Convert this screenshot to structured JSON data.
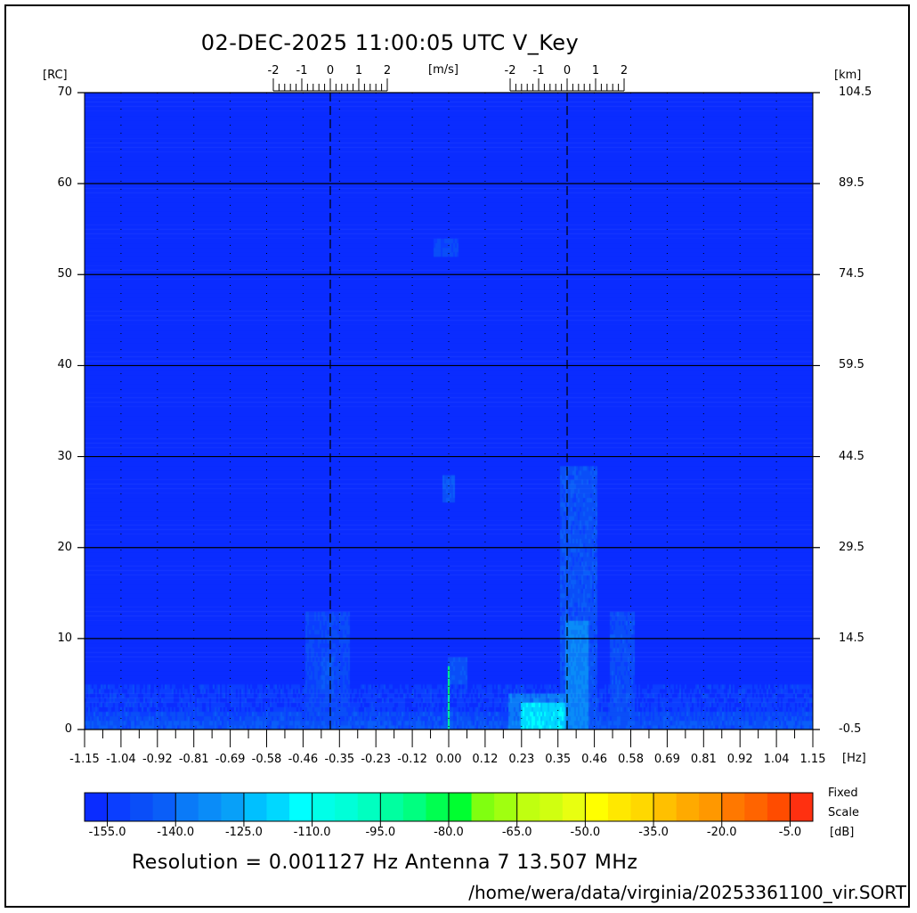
{
  "chart_data": {
    "type": "heatmap",
    "title": "02-DEC-2025 11:00:05 UTC   V_Key",
    "xlabel": "[Hz]",
    "ylabel_left": "[RC]",
    "ylabel_right": "[km]",
    "top_axis_label": "[m/s]",
    "xlim": [
      -1.15,
      1.15
    ],
    "ylim": [
      0,
      70
    ],
    "x_tick_labels": [
      "-1.15",
      "-1.04",
      "-0.92",
      "-0.81",
      "-0.69",
      "-0.58",
      "-0.46",
      "-0.35",
      "-0.23",
      "-0.12",
      "0.00",
      "0.12",
      "0.23",
      "0.35",
      "0.46",
      "0.58",
      "0.69",
      "0.81",
      "0.92",
      "1.04",
      "1.15"
    ],
    "y_ticks_left": [
      0,
      10,
      20,
      30,
      40,
      50,
      60,
      70
    ],
    "y_tick_labels_right": [
      "-0.5",
      "14.5",
      "29.5",
      "44.5",
      "59.5",
      "74.5",
      "89.5",
      "104.5"
    ],
    "bragg_lines_hz": [
      -0.374,
      0.374
    ],
    "velocity_scale_ticks": [
      "-2",
      "-1",
      "0",
      "1",
      "2"
    ],
    "velocity_scale_range_ms": [
      -2,
      2
    ],
    "grid": "horizontal solid at y ticks; vertical dotted at x ticks",
    "colorbar": {
      "zlim": [
        -160,
        0
      ],
      "tick_labels": [
        "-155.0",
        "-140.0",
        "-125.0",
        "-110.0",
        "-95.0",
        "-80.0",
        "-65.0",
        "-50.0",
        "-35.0",
        "-20.0",
        "-5.0"
      ],
      "label_top": "Fixed",
      "label_mid": "Scale",
      "unit": "[dB]",
      "colors": [
        "#0a2cff",
        "#0b3eff",
        "#0a4ef8",
        "#0a5ef8",
        "#0a7af8",
        "#0a8cf8",
        "#08a0f8",
        "#00c0ff",
        "#00d8ff",
        "#00ffff",
        "#00ffe8",
        "#00ffd8",
        "#00ffc0",
        "#00ffa0",
        "#00ff80",
        "#00ff50",
        "#00ff30",
        "#80ff10",
        "#a0ff10",
        "#c0ff10",
        "#d0ff10",
        "#e8ff10",
        "#ffff00",
        "#ffe800",
        "#ffd800",
        "#ffc000",
        "#ffaa00",
        "#ff9800",
        "#ff7800",
        "#ff6400",
        "#ff4c00",
        "#ff3010"
      ]
    },
    "background_db": -157,
    "noise_floor": [
      {
        "rc": [
          0,
          1
        ],
        "db": -146
      },
      {
        "rc": [
          1,
          2
        ],
        "db": -149
      },
      {
        "rc": [
          2,
          5
        ],
        "db": -154
      }
    ],
    "features": [
      {
        "hz": [
          0.19,
          0.38
        ],
        "rc": [
          0,
          4
        ],
        "db": -138
      },
      {
        "hz": [
          0.23,
          0.37
        ],
        "rc": [
          0,
          3
        ],
        "db": -117
      },
      {
        "hz": [
          0.35,
          0.47
        ],
        "rc": [
          0,
          29
        ],
        "db": -147
      },
      {
        "hz": [
          0.37,
          0.44
        ],
        "rc": [
          0,
          12
        ],
        "db": -135
      },
      {
        "hz": [
          0.51,
          0.59
        ],
        "rc": [
          0,
          13
        ],
        "db": -148
      },
      {
        "hz": [
          -0.45,
          -0.31
        ],
        "rc": [
          0,
          13
        ],
        "db": -150
      },
      {
        "hz": [
          -0.4,
          -0.36
        ],
        "rc": [
          4,
          8
        ],
        "db": -146
      },
      {
        "hz": [
          -0.004,
          0.004
        ],
        "rc": [
          0,
          7
        ],
        "db": -88
      },
      {
        "hz": [
          0.0,
          0.06
        ],
        "rc": [
          5,
          8
        ],
        "db": -146
      },
      {
        "hz": [
          -0.02,
          0.02
        ],
        "rc": [
          25,
          28
        ],
        "db": -146
      },
      {
        "hz": [
          -0.045,
          0.03
        ],
        "rc": [
          52,
          54
        ],
        "db": -149
      }
    ]
  },
  "footer": {
    "resolution": "Resolution = 0.001127 Hz   Antenna  7   13.507 MHz",
    "file_path": "/home/wera/data/virginia/20253361100_vir.SORT"
  }
}
